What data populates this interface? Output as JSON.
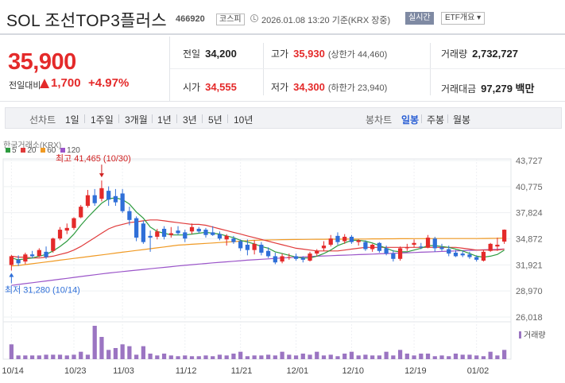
{
  "header": {
    "name": "SOL 조선TOP3플러스",
    "code": "466920",
    "market": "코스피",
    "datetime": "2026.01.08 13:20 기준(KRX 장중)",
    "realtime_label": "실시간",
    "etf_label": "ETF개요 ▾"
  },
  "quote": {
    "price": "35,900",
    "change_label": "전일대비",
    "change_value": "1,700",
    "change_pct": "+4.97%",
    "prev_close_label": "전일",
    "prev_close": "34,200",
    "high_label": "고가",
    "high": "35,930",
    "upper_limit": "(상한가 44,460)",
    "volume_label": "거래량",
    "volume": "2,732,727",
    "open_label": "시가",
    "open": "34,555",
    "low_label": "저가",
    "low": "34,300",
    "lower_limit": "(하한가 23,940)",
    "amount_label": "거래대금",
    "amount": "97,279 백만"
  },
  "periods": {
    "line_chart": "선차트",
    "items": [
      "1일",
      "1주일",
      "3개월",
      "1년",
      "3년",
      "5년",
      "10년"
    ],
    "candle_chart": "봉차트",
    "candle_items": [
      "일봉",
      "주봉",
      "월봉"
    ],
    "active": "일봉"
  },
  "chart_data": {
    "type": "candlestick",
    "source": "한국거래소(KRX)",
    "legend": [
      {
        "name": "5",
        "color": "#2e9b3f"
      },
      {
        "name": "20",
        "color": "#e03b3b"
      },
      {
        "name": "60",
        "color": "#f09a24"
      },
      {
        "name": "120",
        "color": "#9b55c9"
      }
    ],
    "y_ticks": [
      "43,727",
      "40,775",
      "37,824",
      "34,872",
      "31,921",
      "28,970",
      "26,018"
    ],
    "x_ticks": [
      "10/14",
      "10/23",
      "11/03",
      "11/12",
      "11/21",
      "12/01",
      "12/10",
      "12/19",
      "01/02"
    ],
    "ylim": [
      26018,
      43727
    ],
    "high_annotation": "최고 41,465 (10/30)",
    "low_annotation": "최저 31,280 (10/14)",
    "volume_label": "거래량",
    "up_color": "#e42a2a",
    "down_color": "#2f6fd8",
    "candles": [
      {
        "o": 31900,
        "h": 33050,
        "l": 31280,
        "c": 32900
      },
      {
        "o": 32500,
        "h": 33000,
        "l": 31800,
        "c": 32100
      },
      {
        "o": 32300,
        "h": 33300,
        "l": 32000,
        "c": 33100
      },
      {
        "o": 33100,
        "h": 33500,
        "l": 32700,
        "c": 32900
      },
      {
        "o": 32900,
        "h": 33800,
        "l": 32800,
        "c": 33600
      },
      {
        "o": 33400,
        "h": 34000,
        "l": 32600,
        "c": 32800
      },
      {
        "o": 33500,
        "h": 35000,
        "l": 33300,
        "c": 34900
      },
      {
        "o": 34900,
        "h": 36200,
        "l": 34700,
        "c": 35900
      },
      {
        "o": 35800,
        "h": 36600,
        "l": 35400,
        "c": 36100
      },
      {
        "o": 36100,
        "h": 37300,
        "l": 35900,
        "c": 37200
      },
      {
        "o": 37300,
        "h": 38700,
        "l": 37200,
        "c": 38500
      },
      {
        "o": 38600,
        "h": 40400,
        "l": 38400,
        "c": 39800
      },
      {
        "o": 39800,
        "h": 40500,
        "l": 38600,
        "c": 38900
      },
      {
        "o": 39400,
        "h": 41465,
        "l": 39100,
        "c": 40600
      },
      {
        "o": 40300,
        "h": 40800,
        "l": 38600,
        "c": 39300
      },
      {
        "o": 39700,
        "h": 40500,
        "l": 38600,
        "c": 39000
      },
      {
        "o": 40000,
        "h": 40500,
        "l": 37800,
        "c": 38000
      },
      {
        "o": 38000,
        "h": 38500,
        "l": 36400,
        "c": 37000
      },
      {
        "o": 37200,
        "h": 37400,
        "l": 34600,
        "c": 35000
      },
      {
        "o": 36600,
        "h": 36900,
        "l": 34300,
        "c": 34500
      },
      {
        "o": 35200,
        "h": 35800,
        "l": 33400,
        "c": 35000
      },
      {
        "o": 35100,
        "h": 36000,
        "l": 34800,
        "c": 35700
      },
      {
        "o": 36000,
        "h": 36300,
        "l": 34800,
        "c": 35100
      },
      {
        "o": 35300,
        "h": 36200,
        "l": 35000,
        "c": 35500
      },
      {
        "o": 35800,
        "h": 36300,
        "l": 35300,
        "c": 35500
      },
      {
        "o": 35600,
        "h": 35900,
        "l": 34500,
        "c": 34900
      },
      {
        "o": 35700,
        "h": 36600,
        "l": 35400,
        "c": 36200
      },
      {
        "o": 36000,
        "h": 36200,
        "l": 35500,
        "c": 35700
      },
      {
        "o": 35900,
        "h": 36100,
        "l": 35000,
        "c": 35300
      },
      {
        "o": 35600,
        "h": 36300,
        "l": 35200,
        "c": 35300
      },
      {
        "o": 35400,
        "h": 35700,
        "l": 34700,
        "c": 34900
      },
      {
        "o": 34800,
        "h": 35400,
        "l": 34100,
        "c": 35200
      },
      {
        "o": 34900,
        "h": 35200,
        "l": 34300,
        "c": 34500
      },
      {
        "o": 34600,
        "h": 34800,
        "l": 33500,
        "c": 33800
      },
      {
        "o": 34200,
        "h": 34800,
        "l": 33000,
        "c": 33600
      },
      {
        "o": 33600,
        "h": 34700,
        "l": 33100,
        "c": 34300
      },
      {
        "o": 34200,
        "h": 34500,
        "l": 33000,
        "c": 33300
      },
      {
        "o": 33500,
        "h": 33900,
        "l": 32700,
        "c": 32900
      },
      {
        "o": 32900,
        "h": 33300,
        "l": 32000,
        "c": 32200
      },
      {
        "o": 32300,
        "h": 33200,
        "l": 32100,
        "c": 32900
      },
      {
        "o": 32800,
        "h": 33200,
        "l": 32500,
        "c": 32800
      },
      {
        "o": 32900,
        "h": 33200,
        "l": 32400,
        "c": 32600
      },
      {
        "o": 32700,
        "h": 32900,
        "l": 32200,
        "c": 32500
      },
      {
        "o": 32400,
        "h": 33400,
        "l": 32300,
        "c": 33200
      },
      {
        "o": 33200,
        "h": 33700,
        "l": 32900,
        "c": 33500
      },
      {
        "o": 33800,
        "h": 34600,
        "l": 33500,
        "c": 34100
      },
      {
        "o": 34200,
        "h": 35300,
        "l": 34000,
        "c": 34900
      },
      {
        "o": 35200,
        "h": 35600,
        "l": 34200,
        "c": 34500
      },
      {
        "o": 34600,
        "h": 35400,
        "l": 34300,
        "c": 35100
      },
      {
        "o": 35100,
        "h": 35300,
        "l": 34300,
        "c": 34500
      },
      {
        "o": 34500,
        "h": 34800,
        "l": 34100,
        "c": 34700
      },
      {
        "o": 34500,
        "h": 34700,
        "l": 33500,
        "c": 33700
      },
      {
        "o": 33700,
        "h": 34300,
        "l": 33400,
        "c": 34200
      },
      {
        "o": 34400,
        "h": 34500,
        "l": 33300,
        "c": 33500
      },
      {
        "o": 33800,
        "h": 34100,
        "l": 33000,
        "c": 33200
      },
      {
        "o": 33200,
        "h": 33600,
        "l": 32300,
        "c": 32600
      },
      {
        "o": 32600,
        "h": 34000,
        "l": 32400,
        "c": 33800
      },
      {
        "o": 33800,
        "h": 34300,
        "l": 33500,
        "c": 33900
      },
      {
        "o": 34200,
        "h": 34800,
        "l": 33900,
        "c": 34400
      },
      {
        "o": 34000,
        "h": 34400,
        "l": 33700,
        "c": 33900
      },
      {
        "o": 33900,
        "h": 35300,
        "l": 33800,
        "c": 35000
      },
      {
        "o": 34900,
        "h": 35100,
        "l": 33400,
        "c": 33800
      },
      {
        "o": 33900,
        "h": 34300,
        "l": 33500,
        "c": 33700
      },
      {
        "o": 33700,
        "h": 34100,
        "l": 32900,
        "c": 33200
      },
      {
        "o": 33300,
        "h": 33600,
        "l": 32800,
        "c": 32900
      },
      {
        "o": 33200,
        "h": 33500,
        "l": 32800,
        "c": 33000
      },
      {
        "o": 33100,
        "h": 33400,
        "l": 32600,
        "c": 32800
      },
      {
        "o": 32800,
        "h": 33000,
        "l": 32300,
        "c": 32500
      },
      {
        "o": 32400,
        "h": 33600,
        "l": 32300,
        "c": 33400
      },
      {
        "o": 33500,
        "h": 34400,
        "l": 33400,
        "c": 34300
      },
      {
        "o": 34000,
        "h": 35000,
        "l": 33500,
        "c": 34200
      },
      {
        "o": 34555,
        "h": 35930,
        "l": 34300,
        "c": 35900
      }
    ],
    "ma5": [
      32700,
      32500,
      32600,
      32700,
      32900,
      33100,
      33500,
      34000,
      34600,
      35400,
      36400,
      37300,
      38100,
      38900,
      39400,
      39500,
      39300,
      38800,
      37900,
      37200,
      36200,
      35700,
      35500,
      35300,
      35300,
      35300,
      35400,
      35500,
      35600,
      35500,
      35400,
      35200,
      35000,
      34700,
      34500,
      34300,
      34000,
      33800,
      33400,
      33200,
      33000,
      32800,
      32700,
      32700,
      32900,
      33200,
      33600,
      34100,
      34400,
      34700,
      34700,
      34600,
      34400,
      34100,
      33800,
      33500,
      33400,
      33400,
      33600,
      33800,
      34100,
      34100,
      34000,
      33900,
      33700,
      33500,
      33200,
      32900,
      32800,
      32900,
      33100,
      33600
    ],
    "ma20": [
      32900,
      32800,
      32800,
      32700,
      32700,
      32800,
      32900,
      33100,
      33300,
      33600,
      34000,
      34500,
      35000,
      35500,
      36000,
      36300,
      36500,
      36700,
      36800,
      36900,
      37000,
      37000,
      36900,
      36800,
      36700,
      36600,
      36500,
      36500,
      36400,
      36200,
      36000,
      35800,
      35600,
      35400,
      35200,
      35000,
      34800,
      34600,
      34400,
      34200,
      34000,
      33800,
      33700,
      33600,
      33500,
      33500,
      33500,
      33500,
      33600,
      33700,
      33800,
      33900,
      33900,
      33900,
      33900,
      33900,
      33900,
      33900,
      33900,
      33900,
      33900,
      33900,
      33900,
      33900,
      33900,
      33800,
      33700,
      33600,
      33600,
      33600,
      33600,
      33700
    ],
    "ma60": [
      31800,
      31850,
      31950,
      32050,
      32150,
      32250,
      32350,
      32450,
      32550,
      32650,
      32750,
      32850,
      32950,
      33050,
      33150,
      33250,
      33350,
      33450,
      33550,
      33650,
      33750,
      33850,
      33950,
      34050,
      34150,
      34200,
      34250,
      34300,
      34350,
      34400,
      34450,
      34500,
      34550,
      34600,
      34650,
      34700,
      34720,
      34740,
      34760,
      34770,
      34780,
      34790,
      34800,
      34810,
      34820,
      34820,
      34830,
      34830,
      34840,
      34840,
      34850,
      34850,
      34860,
      34860,
      34870,
      34870,
      34880,
      34880,
      34890,
      34890,
      34890,
      34900,
      34900,
      34900,
      34900,
      34900,
      34900,
      34900,
      34910,
      34920,
      34930,
      34950
    ],
    "ma120": [
      29600,
      29700,
      29800,
      29900,
      30000,
      30100,
      30200,
      30300,
      30400,
      30500,
      30600,
      30700,
      30800,
      30900,
      31000,
      31080,
      31160,
      31240,
      31320,
      31400,
      31480,
      31560,
      31640,
      31720,
      31800,
      31870,
      31940,
      32010,
      32080,
      32150,
      32210,
      32270,
      32330,
      32390,
      32450,
      32500,
      32550,
      32600,
      32650,
      32700,
      32740,
      32780,
      32820,
      32860,
      32900,
      32930,
      32960,
      32990,
      33020,
      33050,
      33080,
      33110,
      33140,
      33170,
      33200,
      33230,
      33260,
      33290,
      33320,
      33350,
      33380,
      33410,
      33440,
      33470,
      33500,
      33530,
      33560,
      33590,
      33620,
      33650,
      33680,
      33710
    ],
    "volumes": [
      40,
      10,
      10,
      10,
      10,
      12,
      12,
      12,
      10,
      12,
      20,
      12,
      90,
      60,
      25,
      30,
      40,
      35,
      12,
      35,
      15,
      10,
      15,
      10,
      8,
      10,
      8,
      8,
      10,
      8,
      12,
      10,
      15,
      20,
      8,
      10,
      10,
      12,
      10,
      20,
      12,
      10,
      15,
      12,
      20,
      10,
      12,
      8,
      15,
      20,
      10,
      12,
      10,
      10,
      20,
      10,
      25,
      15,
      10,
      15,
      15,
      8,
      10,
      8,
      15,
      12,
      12,
      10,
      8,
      20,
      10,
      25
    ]
  }
}
